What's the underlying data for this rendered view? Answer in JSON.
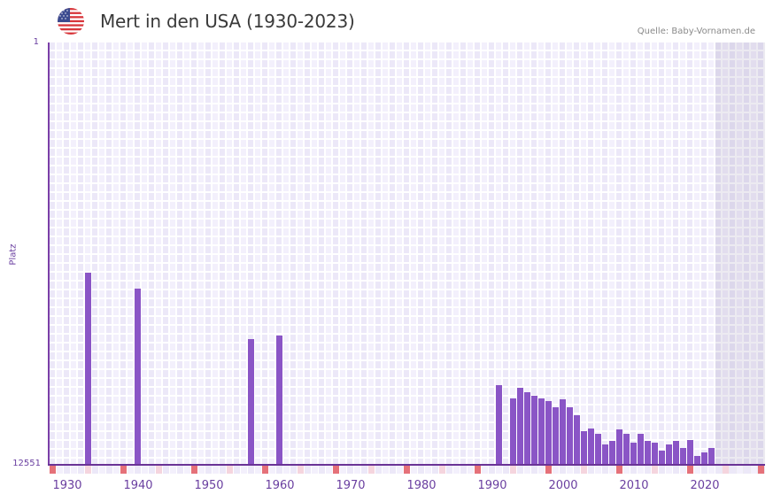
{
  "header": {
    "title": "Mert in den USA (1930-2023)",
    "source": "Quelle: Baby-Vornamen.de",
    "flag_icon": "usa-flag-icon"
  },
  "colors": {
    "bar": "#8a55c6",
    "axis": "#6a3396",
    "decade_marker": "#e57179",
    "half_decade_marker": "#f5d5de",
    "cell_a": "#ece8f8",
    "cell_b": "#f3f0fc",
    "future_shade": "#dcd7e8"
  },
  "axis": {
    "y_title": "Platz",
    "y_top_label": "1",
    "y_bottom_label": "12551",
    "x_ticks": [
      "1930",
      "1940",
      "1950",
      "1960",
      "1970",
      "1980",
      "1990",
      "2000",
      "2010",
      "2020"
    ]
  },
  "chart_data": {
    "type": "bar",
    "title": "Mert in den USA (1930-2023)",
    "xlabel": "",
    "ylabel": "Platz",
    "y_scale": "log (inverted rank, 1 at top)",
    "ylim": [
      12551,
      1
    ],
    "x_range": [
      1928,
      2028
    ],
    "grid": true,
    "source": "Quelle: Baby-Vornamen.de",
    "x": [
      1933,
      1940,
      1956,
      1960,
      1991,
      1993,
      1994,
      1995,
      1996,
      1997,
      1998,
      1999,
      2000,
      2001,
      2002,
      2003,
      2004,
      2005,
      2006,
      2007,
      2008,
      2009,
      2010,
      2011,
      2012,
      2013,
      2014,
      2015,
      2016,
      2017,
      2018,
      2019,
      2020,
      2021
    ],
    "values": [
      171,
      245,
      757,
      699,
      2120,
      2870,
      2250,
      2500,
      2660,
      2830,
      3010,
      3470,
      2910,
      3470,
      4160,
      5870,
      5540,
      6230,
      7920,
      7300,
      5700,
      6230,
      7620,
      6230,
      7310,
      7620,
      9120,
      7920,
      7310,
      8610,
      7180,
      10400,
      9590,
      8610
    ],
    "future_shaded_from": 2022
  }
}
